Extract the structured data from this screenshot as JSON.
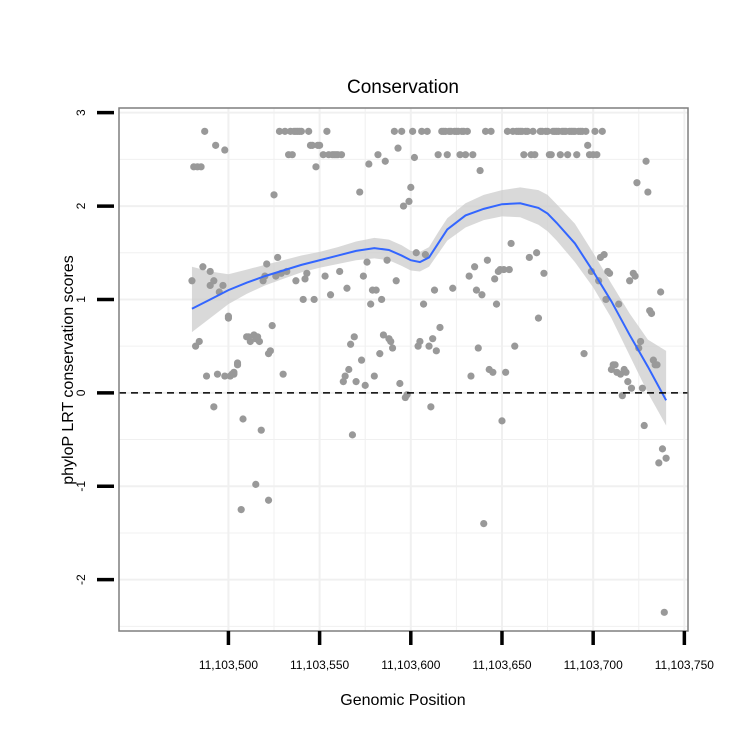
{
  "chart_data": {
    "type": "scatter",
    "title": "Conservation",
    "xlabel": "Genomic Position",
    "ylabel": "phyloP LRT conservation scores",
    "xlim": [
      11103440,
      11103752
    ],
    "ylim": [
      -2.55,
      3.05
    ],
    "x_ticks": [
      11103500,
      11103550,
      11103600,
      11103650,
      11103700,
      11103750
    ],
    "x_tick_labels": [
      "11,103,500",
      "11,103,550",
      "11,103,600",
      "11,103,650",
      "11,103,700",
      "11,103,750"
    ],
    "y_ticks": [
      3,
      2,
      1,
      0,
      -1,
      -2
    ],
    "y_tick_labels": [
      "3",
      "2",
      "1",
      "0",
      "-1",
      "-2"
    ],
    "reference_line": {
      "y": 0,
      "style": "dashed"
    },
    "colors": {
      "points": "#999999",
      "smooth": "#3366ff",
      "band": "#cccccc",
      "grid": "#f0f0f0",
      "frame": "#7f7f7f"
    },
    "series": [
      {
        "name": "scores",
        "kind": "points",
        "x": [
          11103480,
          11103481,
          11103482,
          11103483,
          11103484,
          11103485,
          11103486,
          11103487,
          11103488,
          11103490,
          11103490,
          11103492,
          11103492,
          11103493,
          11103494,
          11103495,
          11103497,
          11103498,
          11103498,
          11103500,
          11103500,
          11103501,
          11103502,
          11103503,
          11103503,
          11103505,
          11103505,
          11103507,
          11103508,
          11103510,
          11103511,
          11103512,
          11103514,
          11103515,
          11103515,
          11103516,
          11103517,
          11103518,
          11103519,
          11103520,
          11103521,
          11103522,
          11103522,
          11103523,
          11103524,
          11103525,
          11103526,
          11103527,
          11103528,
          11103529,
          11103530,
          11103531,
          11103532,
          11103533,
          11103534,
          11103535,
          11103536,
          11103537,
          11103537,
          11103538,
          11103539,
          11103540,
          11103541,
          11103542,
          11103543,
          11103544,
          11103545,
          11103546,
          11103547,
          11103548,
          11103549,
          11103550,
          11103552,
          11103553,
          11103554,
          11103555,
          11103556,
          11103557,
          11103558,
          11103559,
          11103560,
          11103561,
          11103562,
          11103563,
          11103564,
          11103565,
          11103566,
          11103567,
          11103568,
          11103569,
          11103570,
          11103572,
          11103573,
          11103574,
          11103575,
          11103576,
          11103577,
          11103578,
          11103579,
          11103580,
          11103581,
          11103582,
          11103583,
          11103584,
          11103585,
          11103586,
          11103587,
          11103588,
          11103589,
          11103590,
          11103591,
          11103592,
          11103593,
          11103594,
          11103595,
          11103596,
          11103597,
          11103598,
          11103599,
          11103600,
          11103601,
          11103602,
          11103603,
          11103604,
          11103605,
          11103606,
          11103607,
          11103608,
          11103609,
          11103610,
          11103611,
          11103612,
          11103613,
          11103614,
          11103615,
          11103616,
          11103617,
          11103618,
          11103619,
          11103620,
          11103621,
          11103622,
          11103623,
          11103624,
          11103625,
          11103626,
          11103627,
          11103628,
          11103629,
          11103630,
          11103631,
          11103632,
          11103633,
          11103634,
          11103635,
          11103636,
          11103637,
          11103638,
          11103639,
          11103640,
          11103641,
          11103642,
          11103643,
          11103644,
          11103645,
          11103646,
          11103647,
          11103648,
          11103649,
          11103650,
          11103651,
          11103652,
          11103653,
          11103654,
          11103655,
          11103656,
          11103657,
          11103658,
          11103659,
          11103660,
          11103661,
          11103662,
          11103663,
          11103664,
          11103665,
          11103666,
          11103667,
          11103668,
          11103669,
          11103670,
          11103671,
          11103672,
          11103673,
          11103674,
          11103675,
          11103676,
          11103677,
          11103678,
          11103679,
          11103680,
          11103681,
          11103682,
          11103683,
          11103684,
          11103685,
          11103686,
          11103687,
          11103688,
          11103689,
          11103690,
          11103691,
          11103692,
          11103693,
          11103694,
          11103695,
          11103696,
          11103697,
          11103698,
          11103699,
          11103700,
          11103701,
          11103702,
          11103703,
          11103704,
          11103705,
          11103706,
          11103707,
          11103708,
          11103709,
          11103710,
          11103711,
          11103712,
          11103713,
          11103714,
          11103715,
          11103716,
          11103717,
          11103718,
          11103719,
          11103720,
          11103721,
          11103722,
          11103723,
          11103724,
          11103725,
          11103726,
          11103727,
          11103728,
          11103729,
          11103730,
          11103731,
          11103732,
          11103733,
          11103734,
          11103735,
          11103736,
          11103737,
          11103738,
          11103739,
          11103740
        ],
        "y": [
          1.2,
          2.42,
          0.5,
          2.42,
          0.55,
          2.42,
          1.35,
          2.8,
          0.18,
          1.15,
          1.3,
          -0.15,
          1.2,
          2.65,
          0.2,
          1.08,
          1.15,
          2.6,
          0.18,
          0.8,
          0.82,
          0.18,
          0.2,
          0.2,
          0.22,
          0.3,
          0.32,
          -1.25,
          -0.28,
          0.6,
          0.6,
          0.55,
          0.62,
          -0.98,
          0.58,
          0.6,
          0.55,
          -0.4,
          1.2,
          1.25,
          1.38,
          -1.15,
          0.42,
          0.45,
          0.72,
          2.12,
          1.25,
          1.45,
          2.8,
          1.28,
          0.2,
          2.8,
          1.3,
          2.55,
          2.8,
          2.55,
          2.8,
          2.8,
          1.2,
          2.8,
          2.8,
          2.8,
          1.0,
          1.22,
          1.28,
          2.8,
          2.65,
          2.65,
          1.0,
          2.42,
          2.65,
          2.65,
          2.55,
          1.25,
          2.8,
          2.55,
          1.05,
          2.55,
          2.55,
          2.55,
          2.55,
          1.3,
          2.55,
          0.12,
          0.18,
          1.12,
          0.25,
          0.52,
          -0.45,
          0.6,
          0.12,
          2.15,
          0.35,
          1.25,
          0.08,
          1.4,
          2.45,
          0.95,
          1.1,
          0.18,
          1.1,
          2.55,
          0.42,
          1.0,
          0.62,
          2.48,
          1.42,
          0.58,
          0.55,
          0.48,
          2.8,
          1.2,
          2.62,
          0.1,
          2.8,
          2.0,
          -0.05,
          -0.02,
          2.05,
          2.2,
          2.8,
          2.52,
          1.5,
          0.5,
          0.55,
          2.8,
          0.95,
          1.48,
          2.8,
          0.5,
          -0.15,
          0.58,
          1.1,
          0.45,
          2.55,
          0.7,
          2.8,
          2.8,
          2.8,
          2.55,
          2.8,
          2.8,
          1.12,
          2.8,
          2.8,
          2.8,
          2.55,
          2.8,
          2.8,
          2.55,
          2.8,
          1.25,
          0.18,
          2.55,
          1.35,
          1.1,
          0.48,
          2.38,
          1.05,
          -1.4,
          2.8,
          1.42,
          0.25,
          2.8,
          0.22,
          1.22,
          0.95,
          1.3,
          1.32,
          -0.3,
          1.32,
          0.22,
          2.8,
          1.32,
          1.6,
          2.8,
          0.5,
          2.8,
          2.8,
          2.8,
          2.8,
          2.55,
          2.8,
          2.8,
          1.45,
          2.55,
          2.8,
          2.55,
          1.5,
          0.8,
          2.8,
          2.8,
          1.28,
          2.8,
          2.8,
          2.55,
          2.55,
          2.8,
          2.8,
          2.8,
          2.8,
          2.55,
          2.8,
          2.8,
          2.8,
          2.55,
          2.8,
          2.8,
          2.8,
          2.8,
          2.55,
          2.8,
          2.8,
          2.8,
          0.42,
          2.8,
          2.65,
          2.55,
          1.3,
          2.55,
          2.8,
          2.55,
          1.2,
          1.45,
          2.8,
          1.48,
          1.0,
          1.3,
          1.28,
          0.25,
          0.3,
          0.3,
          0.22,
          0.95,
          0.2,
          -0.03,
          0.25,
          0.22,
          0.12,
          1.2,
          0.05,
          1.28,
          1.25,
          2.25,
          0.48,
          0.55,
          0.05,
          -0.35,
          2.48,
          2.15,
          0.88,
          0.85,
          0.35,
          0.3,
          0.3,
          -0.75,
          1.08,
          -0.6,
          -2.35,
          -0.7
        ]
      },
      {
        "name": "loess fit",
        "kind": "smooth",
        "x": [
          11103480,
          11103490,
          11103500,
          11103510,
          11103520,
          11103530,
          11103540,
          11103550,
          11103560,
          11103570,
          11103580,
          11103588,
          11103595,
          11103600,
          11103605,
          11103610,
          11103615,
          11103620,
          11103630,
          11103640,
          11103650,
          11103660,
          11103670,
          11103675,
          11103680,
          11103690,
          11103700,
          11103710,
          11103720,
          11103730,
          11103740
        ],
        "y": [
          0.9,
          1.0,
          1.1,
          1.18,
          1.25,
          1.31,
          1.37,
          1.42,
          1.47,
          1.52,
          1.55,
          1.53,
          1.47,
          1.42,
          1.4,
          1.45,
          1.6,
          1.75,
          1.9,
          1.97,
          2.02,
          2.03,
          1.98,
          1.92,
          1.82,
          1.6,
          1.3,
          0.98,
          0.62,
          0.28,
          -0.08
        ],
        "lower": [
          0.65,
          0.8,
          0.95,
          1.06,
          1.15,
          1.22,
          1.29,
          1.34,
          1.38,
          1.42,
          1.44,
          1.42,
          1.36,
          1.31,
          1.3,
          1.35,
          1.49,
          1.63,
          1.77,
          1.85,
          1.89,
          1.88,
          1.8,
          1.73,
          1.63,
          1.4,
          1.13,
          0.8,
          0.4,
          0.0,
          -0.35
        ],
        "upper": [
          1.35,
          1.3,
          1.27,
          1.32,
          1.37,
          1.42,
          1.47,
          1.51,
          1.56,
          1.62,
          1.66,
          1.64,
          1.58,
          1.52,
          1.51,
          1.56,
          1.72,
          1.87,
          2.03,
          2.12,
          2.17,
          2.2,
          2.17,
          2.12,
          2.02,
          1.81,
          1.5,
          1.17,
          0.85,
          0.57,
          0.45
        ]
      }
    ]
  }
}
